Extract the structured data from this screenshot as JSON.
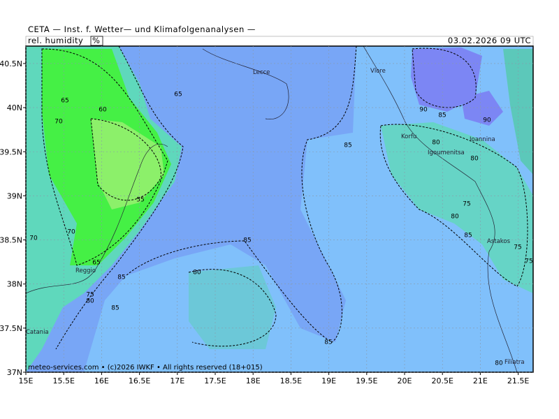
{
  "header": {
    "title": "CETA — Inst. f. Wetter— und Klimafolgenanalysen —",
    "parameter": "rel. humidity",
    "unit": "%",
    "date": "03.02.2026  09  UTC"
  },
  "footer": "meteo-services.com • (c)2026 IWKF • All rights reserved (18+015)",
  "xticks": [
    {
      "value": 15,
      "label": "15E"
    },
    {
      "value": 15.5,
      "label": "15.5E"
    },
    {
      "value": 16,
      "label": "16E"
    },
    {
      "value": 16.5,
      "label": "16.5E"
    },
    {
      "value": 17,
      "label": "17E"
    },
    {
      "value": 17.5,
      "label": "17.5E"
    },
    {
      "value": 18,
      "label": "18E"
    },
    {
      "value": 18.5,
      "label": "18.5E"
    },
    {
      "value": 19,
      "label": "19E"
    },
    {
      "value": 19.5,
      "label": "19.5E"
    },
    {
      "value": 20,
      "label": "20E"
    },
    {
      "value": 20.5,
      "label": "20.5E"
    },
    {
      "value": 21,
      "label": "21E"
    },
    {
      "value": 21.5,
      "label": "21.5E"
    }
  ],
  "yticks": [
    {
      "value": 40.5,
      "label": "40.5N"
    },
    {
      "value": 40,
      "label": "40N"
    },
    {
      "value": 39.5,
      "label": "39.5N"
    },
    {
      "value": 39,
      "label": "39N"
    },
    {
      "value": 38.5,
      "label": "38.5N"
    },
    {
      "value": 38,
      "label": "38N"
    },
    {
      "value": 37.5,
      "label": "37.5N"
    },
    {
      "value": 37,
      "label": "37N"
    }
  ],
  "contour_labels": [
    65,
    60,
    70,
    65,
    55,
    70,
    70,
    65,
    75,
    80,
    85,
    85,
    80,
    85,
    85,
    85,
    90,
    85,
    90,
    80,
    80,
    75,
    80,
    85,
    75,
    75,
    80
  ],
  "places": [
    "Lecce",
    "Vlore",
    "Korfu",
    "Ioannina",
    "Igoumenitsa",
    "Astakos",
    "Filiatra",
    "Reggio",
    "Catania"
  ]
}
